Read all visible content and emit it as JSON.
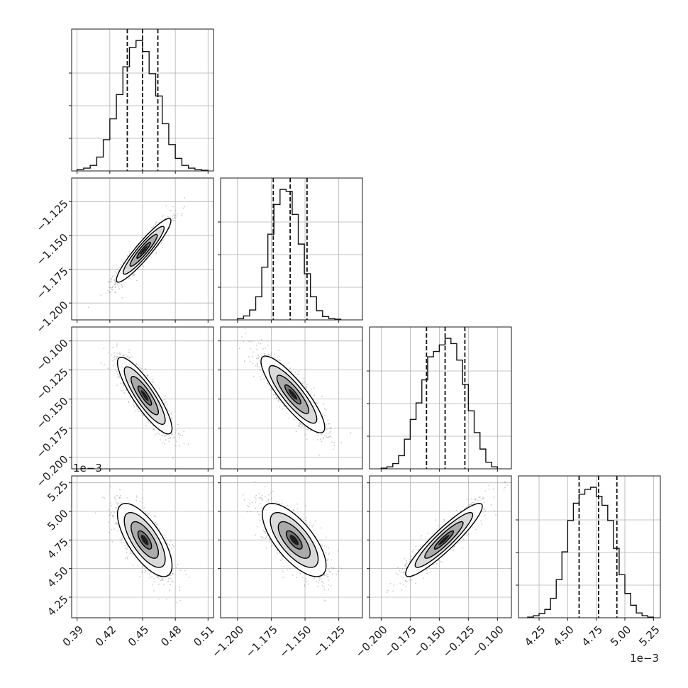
{
  "chart_data": {
    "type": "corner",
    "grid": true,
    "params": [
      {
        "id": "p1",
        "range": [
          0.385,
          0.515
        ],
        "ticks": [
          0.39,
          0.42,
          0.45,
          0.48,
          0.51
        ],
        "tick_labels": [
          "0.39",
          "0.42",
          "0.45",
          "0.48",
          "0.51"
        ],
        "quantiles": [
          0.436,
          0.45,
          0.464
        ],
        "hist_edges": [
          0.39,
          0.396,
          0.402,
          0.408,
          0.414,
          0.42,
          0.426,
          0.432,
          0.438,
          0.444,
          0.45,
          0.456,
          0.462,
          0.468,
          0.474,
          0.48,
          0.486,
          0.492,
          0.498,
          0.504,
          0.51
        ],
        "hist_counts": [
          2,
          4,
          8,
          20,
          45,
          75,
          110,
          150,
          178,
          188,
          172,
          140,
          108,
          68,
          38,
          18,
          8,
          4,
          2,
          1
        ]
      },
      {
        "id": "p2",
        "range": [
          -1.2125,
          -1.1075
        ],
        "ticks": [
          -1.2,
          -1.175,
          -1.15,
          -1.125
        ],
        "tick_labels": [
          "−1.200",
          "−1.175",
          "−1.150",
          "−1.125"
        ],
        "quantiles": [
          -1.1735,
          -1.161,
          -1.1485
        ],
        "hist_edges": [
          -1.2,
          -1.1955,
          -1.191,
          -1.1865,
          -1.182,
          -1.1775,
          -1.173,
          -1.1685,
          -1.164,
          -1.1595,
          -1.155,
          -1.1505,
          -1.146,
          -1.1415,
          -1.137,
          -1.1325,
          -1.128,
          -1.1235
        ],
        "hist_counts": [
          2,
          6,
          15,
          35,
          80,
          130,
          175,
          198,
          195,
          160,
          115,
          70,
          35,
          14,
          5,
          2,
          1
        ]
      },
      {
        "id": "p3",
        "range": [
          -0.21,
          -0.088
        ],
        "ticks": [
          -0.2,
          -0.175,
          -0.15,
          -0.125,
          -0.1
        ],
        "tick_labels": [
          "−0.200",
          "−0.175",
          "−0.150",
          "−0.125",
          "−0.100"
        ],
        "quantiles": [
          -0.161,
          -0.145,
          -0.128
        ],
        "hist_edges": [
          -0.2,
          -0.195,
          -0.19,
          -0.185,
          -0.18,
          -0.175,
          -0.17,
          -0.165,
          -0.16,
          -0.155,
          -0.15,
          -0.145,
          -0.14,
          -0.135,
          -0.13,
          -0.125,
          -0.12,
          -0.115,
          -0.11,
          -0.105,
          -0.1
        ],
        "hist_counts": [
          1,
          3,
          8,
          20,
          45,
          75,
          100,
          135,
          170,
          178,
          188,
          198,
          190,
          165,
          128,
          88,
          55,
          30,
          10,
          3
        ]
      },
      {
        "id": "p4",
        "range": [
          4.07,
          5.31
        ],
        "ticks": [
          4.25,
          4.5,
          4.75,
          5.0,
          5.25
        ],
        "tick_labels": [
          "4.25",
          "4.50",
          "4.75",
          "5.00",
          "5.25"
        ],
        "offset_label": "1e−3",
        "quantiles": [
          4.6,
          4.77,
          4.93
        ],
        "hist_edges": [
          4.15,
          4.2,
          4.25,
          4.3,
          4.35,
          4.4,
          4.45,
          4.5,
          4.55,
          4.6,
          4.65,
          4.7,
          4.75,
          4.8,
          4.85,
          4.9,
          4.95,
          5.0,
          5.05,
          5.1,
          5.15,
          5.2,
          5.25
        ],
        "hist_counts": [
          1,
          3,
          6,
          12,
          28,
          55,
          95,
          140,
          165,
          178,
          185,
          188,
          175,
          162,
          140,
          100,
          62,
          35,
          18,
          7,
          3,
          1
        ]
      }
    ],
    "pairs": [
      {
        "x": "p1",
        "y": "p2",
        "center": [
          0.451,
          -1.161
        ],
        "sigma": [
          0.0125,
          0.0118
        ],
        "rho": 0.93
      },
      {
        "x": "p1",
        "y": "p3",
        "center": [
          0.452,
          -0.147
        ],
        "sigma": [
          0.0125,
          0.0165
        ],
        "rho": -0.86
      },
      {
        "x": "p2",
        "y": "p3",
        "center": [
          -1.159,
          -0.146
        ],
        "sigma": [
          0.0118,
          0.0165
        ],
        "rho": -0.86
      },
      {
        "x": "p1",
        "y": "p4",
        "center": [
          0.452,
          4.75
        ],
        "sigma": [
          0.0125,
          0.16
        ],
        "rho": -0.7
      },
      {
        "x": "p2",
        "y": "p4",
        "center": [
          -1.158,
          4.75
        ],
        "sigma": [
          0.0118,
          0.16
        ],
        "rho": -0.7
      },
      {
        "x": "p3",
        "y": "p4",
        "center": [
          -0.146,
          4.75
        ],
        "sigma": [
          0.0165,
          0.16
        ],
        "rho": 0.92
      }
    ],
    "contour_levels_sigma": [
      0.5,
      1.0,
      1.5,
      2.0
    ]
  }
}
